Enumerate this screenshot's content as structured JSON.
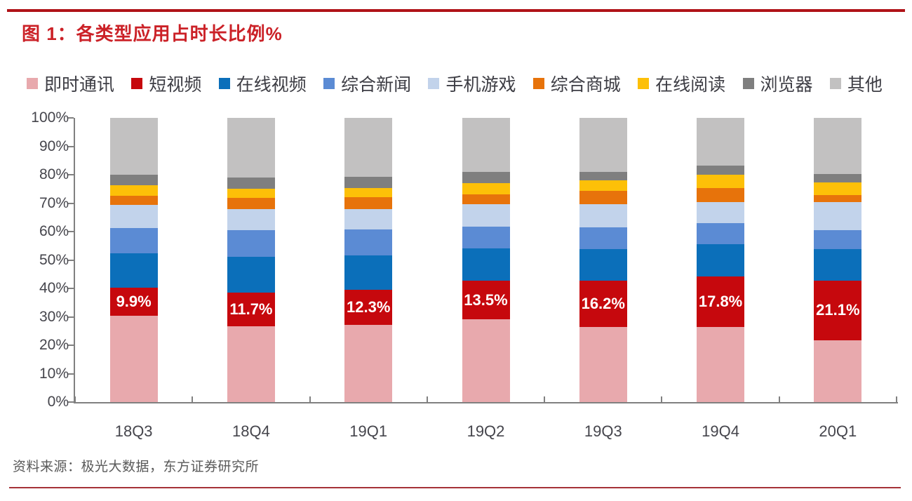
{
  "figure": {
    "title": "图 1：各类型应用占时长比例%",
    "source": "资料来源：极光大数据，东方证券研究所"
  },
  "colors": {
    "accent_rule_top": "#b01318",
    "accent_rule_bottom": "#a53238",
    "title_red": "#cb2127",
    "axis_gray": "#808080"
  },
  "chart_data": {
    "type": "bar",
    "stacked": true,
    "unit": "%",
    "title": "各类型应用占时长比例%",
    "legend_position": "top",
    "grid": false,
    "categories": [
      "18Q3",
      "18Q4",
      "19Q1",
      "19Q2",
      "19Q3",
      "19Q4",
      "20Q1"
    ],
    "series": [
      {
        "name": "即时通讯",
        "color": "#e8a9ad",
        "values": [
          30.3,
          26.7,
          27.2,
          29.1,
          26.4,
          26.4,
          21.7
        ]
      },
      {
        "name": "短视频",
        "color": "#c6080d",
        "values": [
          9.9,
          11.7,
          12.3,
          13.5,
          16.2,
          17.8,
          21.1
        ]
      },
      {
        "name": "在线视频",
        "color": "#0b6fba",
        "values": [
          12.2,
          12.6,
          12.0,
          11.4,
          11.2,
          11.4,
          11.0
        ]
      },
      {
        "name": "综合新闻",
        "color": "#5b8bd4",
        "values": [
          8.9,
          9.4,
          9.3,
          7.7,
          7.6,
          7.4,
          6.8
        ]
      },
      {
        "name": "手机游戏",
        "color": "#c2d3eb",
        "values": [
          8.2,
          7.4,
          7.0,
          7.9,
          8.2,
          7.4,
          9.7
        ]
      },
      {
        "name": "综合商城",
        "color": "#e7730b",
        "values": [
          3.2,
          4.0,
          4.3,
          3.5,
          4.6,
          5.0,
          2.6
        ]
      },
      {
        "name": "在线阅读",
        "color": "#fdc008",
        "values": [
          3.7,
          3.2,
          3.1,
          3.9,
          3.9,
          4.7,
          4.4
        ]
      },
      {
        "name": "浏览器",
        "color": "#7f7f7f",
        "values": [
          3.7,
          3.9,
          4.0,
          4.0,
          3.0,
          3.1,
          3.0
        ]
      },
      {
        "name": "其他",
        "color": "#c2c1c1",
        "values": [
          19.9,
          21.1,
          20.8,
          19.0,
          18.9,
          16.8,
          19.7
        ]
      }
    ],
    "data_labels": {
      "series": "短视频",
      "values": [
        "9.9%",
        "11.7%",
        "12.3%",
        "13.5%",
        "16.2%",
        "17.8%",
        "21.1%"
      ]
    },
    "y_axis": {
      "min": 0,
      "max": 100,
      "ticks_top_to_bottom": [
        "100%",
        "90%",
        "80%",
        "70%",
        "60%",
        "50%",
        "40%",
        "30%",
        "20%",
        "10%",
        "0%"
      ]
    }
  }
}
